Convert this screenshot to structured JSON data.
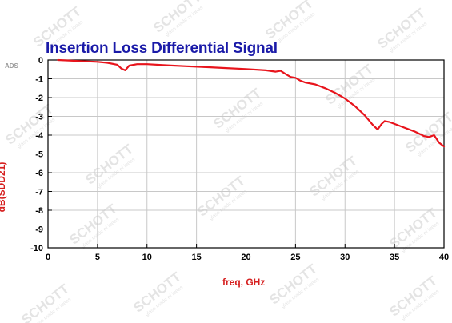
{
  "tool_tag": "ADS",
  "watermark": {
    "brand": "SCHOTT",
    "tagline": "glass made of ideas"
  },
  "chart_data": {
    "type": "line",
    "title": "Insertion Loss Differential Signal",
    "xlabel": "freq, GHz",
    "ylabel": "dB(SDD21)",
    "xlim": [
      0,
      40
    ],
    "ylim": [
      -10,
      0
    ],
    "x_ticks": [
      0,
      5,
      10,
      15,
      20,
      25,
      30,
      35,
      40
    ],
    "y_ticks": [
      0,
      -1,
      -2,
      -3,
      -4,
      -5,
      -6,
      -7,
      -8,
      -9,
      -10
    ],
    "grid": true,
    "colors": {
      "line": "#e8141c",
      "grid": "#c8c8c8",
      "axis": "#000000"
    },
    "series": [
      {
        "x": [
          1,
          3,
          5,
          6,
          7,
          7.4,
          7.8,
          8.2,
          9,
          10,
          12,
          14,
          16,
          18,
          20,
          22,
          23,
          23.5,
          24,
          24.5,
          25,
          25.5,
          26,
          27,
          28,
          29,
          30,
          31,
          32,
          32.8,
          33.3,
          33.7,
          34,
          34.5,
          35,
          36,
          37,
          38,
          38.5,
          39,
          39.5,
          40
        ],
        "y": [
          0,
          -0.05,
          -0.1,
          -0.15,
          -0.25,
          -0.45,
          -0.55,
          -0.3,
          -0.22,
          -0.22,
          -0.28,
          -0.33,
          -0.38,
          -0.43,
          -0.48,
          -0.55,
          -0.62,
          -0.58,
          -0.75,
          -0.9,
          -0.95,
          -1.1,
          -1.2,
          -1.3,
          -1.5,
          -1.75,
          -2.05,
          -2.45,
          -2.95,
          -3.45,
          -3.7,
          -3.4,
          -3.25,
          -3.3,
          -3.4,
          -3.6,
          -3.8,
          -4.05,
          -4.1,
          -4.0,
          -4.4,
          -4.6
        ]
      }
    ]
  }
}
